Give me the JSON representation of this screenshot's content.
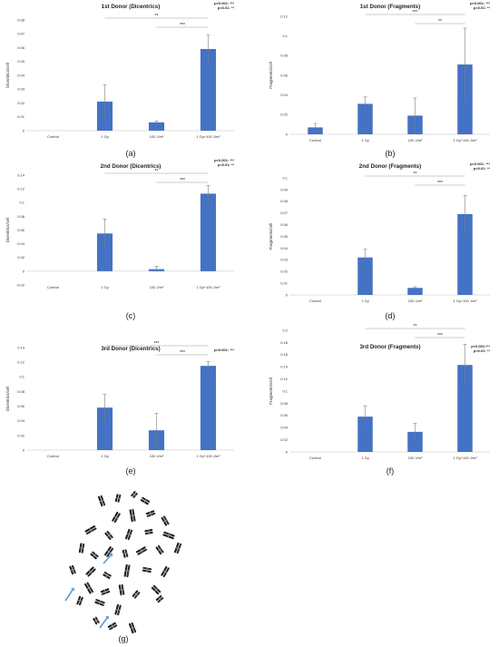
{
  "colors": {
    "bar": "#4472c4",
    "axis": "#bfbfbf",
    "error": "#7f7f7f",
    "text": "#222222",
    "arrow": "#5b9bd5"
  },
  "chart_data": [
    {
      "type": "bar",
      "title": "1st Donor (Dicentrics)",
      "ylabel": "Dicentrics/cell",
      "categories": [
        "Control",
        "1 Gy",
        "100 J/m²",
        "1 Gy+100 J/m²"
      ],
      "values": [
        0,
        0.021,
        0.006,
        0.059
      ],
      "errors": [
        0,
        0.012,
        0.001,
        0.01
      ],
      "ylim": [
        0,
        0.08
      ],
      "ticks": [
        "0",
        "0.01",
        "0.02",
        "0.03",
        "0.04",
        "0.05",
        "0.06",
        "0.07",
        "0.08"
      ],
      "significance": [
        [
          "p<0.001: ***"
        ],
        [
          "p<0.01: **"
        ]
      ],
      "brackets": [
        {
          "from": 1,
          "to": 3,
          "label": "**"
        },
        {
          "from": 2,
          "to": 3,
          "label": "***"
        }
      ],
      "panel_label": "(a)"
    },
    {
      "type": "bar",
      "title": "1st Donor (Fragments)",
      "ylabel": "Fragments/cell",
      "categories": [
        "Control",
        "1 Gy",
        "100 J/m²",
        "1 Gy+100 J/m²"
      ],
      "values": [
        0.007,
        0.031,
        0.019,
        0.071
      ],
      "errors": [
        0.004,
        0.007,
        0.018,
        0.037
      ],
      "ylim": [
        0,
        0.12
      ],
      "ticks": [
        "0",
        "0.02",
        "0.04",
        "0.06",
        "0.08",
        "0.1",
        "0.12"
      ],
      "significance": [
        [
          "p<0.001: ***"
        ],
        [
          "p<0.01: **"
        ]
      ],
      "brackets": [
        {
          "from": 1,
          "to": 3,
          "label": "***"
        },
        {
          "from": 2,
          "to": 3,
          "label": "**"
        }
      ],
      "panel_label": "(b)"
    },
    {
      "type": "bar",
      "title": "2nd Donor (Dicentrics)",
      "ylabel": "Dicentrics/cell",
      "categories": [
        "Control",
        "1 Gy",
        "100 J/m²",
        "1 Gy+100 J/m²"
      ],
      "values": [
        0,
        0.055,
        0.003,
        0.113
      ],
      "errors": [
        0,
        0.021,
        0.004,
        0.012
      ],
      "ylim": [
        -0.02,
        0.14
      ],
      "ticks": [
        "-0.02",
        "0",
        "0.02",
        "0.04",
        "0.06",
        "0.08",
        "0.1",
        "0.12",
        "0.14"
      ],
      "significance": [
        [
          "p<0.001: ***"
        ],
        [
          "p<0.01: **"
        ]
      ],
      "brackets": [
        {
          "from": 1,
          "to": 3,
          "label": "**"
        },
        {
          "from": 2,
          "to": 3,
          "label": "***"
        }
      ],
      "panel_label": "(c)"
    },
    {
      "type": "bar",
      "title": "2nd Donor (Fragments)",
      "ylabel": "Fragments/cell",
      "categories": [
        "Control",
        "1 Gy",
        "100 J/m²",
        "1 Gy+100 J/m²"
      ],
      "values": [
        0,
        0.032,
        0.006,
        0.069
      ],
      "errors": [
        0,
        0.007,
        0.001,
        0.016
      ],
      "ylim": [
        0,
        0.1
      ],
      "ticks": [
        "0",
        "0.01",
        "0.02",
        "0.03",
        "0.04",
        "0.05",
        "0.06",
        "0.07",
        "0.08",
        "0.09",
        "0.1"
      ],
      "significance": [
        [
          "p<0.001: ***"
        ],
        [
          "p<0.01: **"
        ]
      ],
      "brackets": [
        {
          "from": 1,
          "to": 3,
          "label": "**"
        },
        {
          "from": 2,
          "to": 3,
          "label": "***"
        }
      ],
      "panel_label": "(d)"
    },
    {
      "type": "bar",
      "title": "3rd Donor (Dicentrics)",
      "ylabel": "Dicentrics/cell",
      "categories": [
        "Control",
        "1 Gy",
        "100 J/m²",
        "1 Gy+100 J/m²"
      ],
      "values": [
        0,
        0.058,
        0.027,
        0.115
      ],
      "errors": [
        0,
        0.018,
        0.023,
        0.006
      ],
      "ylim": [
        0,
        0.14
      ],
      "ticks": [
        "0",
        "0.02",
        "0.04",
        "0.06",
        "0.08",
        "0.1",
        "0.12",
        "0.14"
      ],
      "significance": [
        [
          "p<0.001: ***"
        ]
      ],
      "brackets": [
        {
          "from": 1,
          "to": 3,
          "label": "***"
        },
        {
          "from": 2,
          "to": 3,
          "label": "***"
        }
      ],
      "panel_label": "(e)"
    },
    {
      "type": "bar",
      "title": "3rd Donor (Fragments)",
      "ylabel": "Fragments/cell",
      "categories": [
        "Control",
        "1 Gy",
        "100 J/m²",
        "1 Gy+100 J/m²"
      ],
      "values": [
        0,
        0.058,
        0.033,
        0.143
      ],
      "errors": [
        0,
        0.018,
        0.014,
        0.034
      ],
      "ylim": [
        0,
        0.2
      ],
      "ticks": [
        "0",
        "0.02",
        "0.04",
        "0.06",
        "0.08",
        "0.1",
        "0.12",
        "0.14",
        "0.16",
        "0.18",
        "0.2"
      ],
      "significance": [
        [
          "p<0.001:***"
        ],
        [
          "p<0.01: **"
        ]
      ],
      "brackets": [
        {
          "from": 1,
          "to": 3,
          "label": "**"
        },
        {
          "from": 2,
          "to": 3,
          "label": "***"
        }
      ],
      "panel_label": "(f)"
    }
  ],
  "karyotype": {
    "panel_label": "(g)",
    "arrow_count": 3
  }
}
